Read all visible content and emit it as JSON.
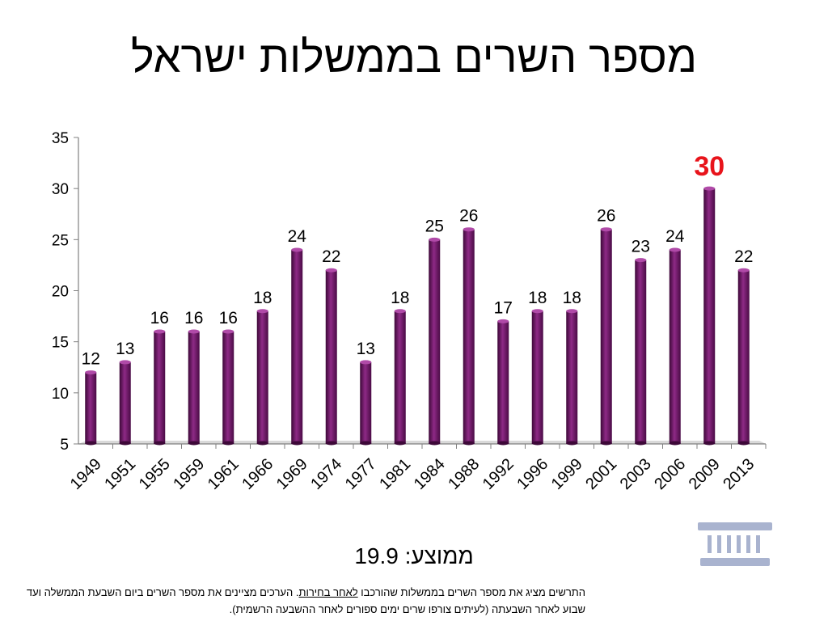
{
  "slide": {
    "title": "מספר השרים בממשלות ישראל",
    "average_label": "ממוצע:",
    "average_value": "19.9",
    "note_part1": "התרשים מציג את מספר השרים בממשלות שהורכבו ",
    "note_link": "לאחר בחירות",
    "note_part2": ". הערכים מציינים את מספר השרים ביום השבעת הממשלה ועד שבוע לאחר השבעתה (לעיתים צורפו שרים ימים ספורים לאחר ההשבעה הרשמית).",
    "icon": "building-columns-icon"
  },
  "chart_data": {
    "type": "bar",
    "categories": [
      "1949",
      "1951",
      "1955",
      "1959",
      "1961",
      "1966",
      "1969",
      "1974",
      "1977",
      "1981",
      "1984",
      "1988",
      "1992",
      "1996",
      "1999",
      "2001",
      "2003",
      "2006",
      "2009",
      "2013"
    ],
    "values": [
      12,
      13,
      16,
      16,
      16,
      18,
      24,
      22,
      13,
      18,
      25,
      26,
      17,
      18,
      18,
      26,
      23,
      24,
      30,
      22
    ],
    "ylim": [
      5,
      35
    ],
    "yticks": [
      5,
      10,
      15,
      20,
      25,
      30,
      35
    ],
    "highlight": {
      "category": "2009",
      "color": "#e8141b"
    },
    "bar_color": "#7a1f72",
    "grid": false
  }
}
